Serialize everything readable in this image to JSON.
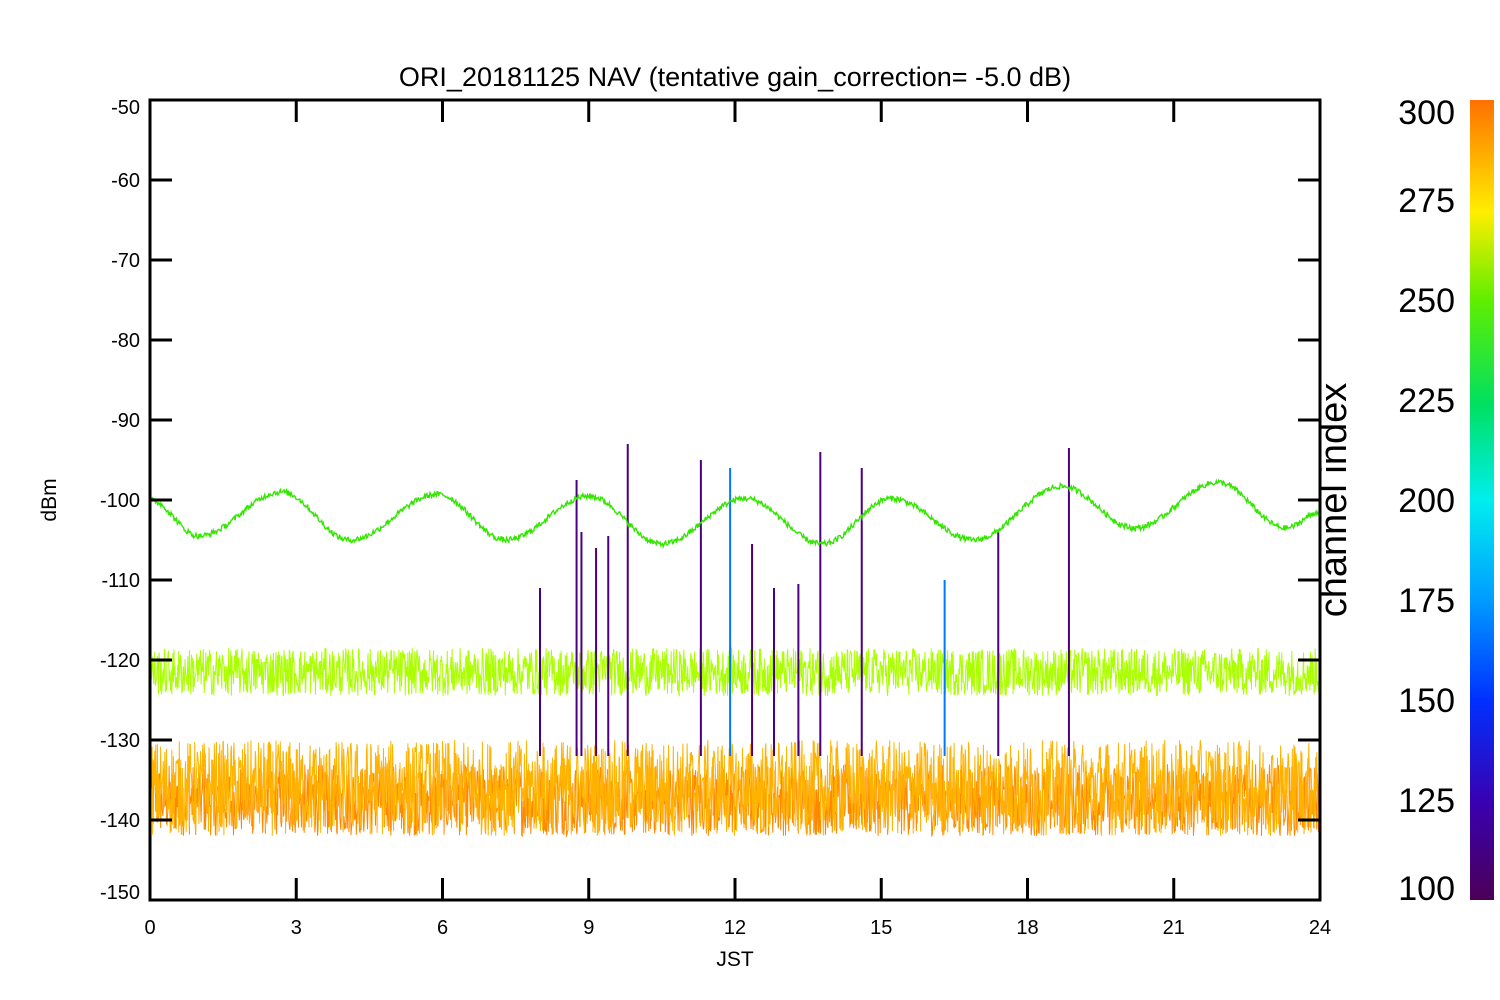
{
  "chart_data": {
    "type": "line",
    "title": "ORI_20181125 NAV (tentative gain_correction= -5.0 dB)",
    "xlabel": "JST",
    "ylabel": "dBm",
    "xlim": [
      0,
      24
    ],
    "ylim": [
      -150,
      -50
    ],
    "x_ticks": [
      "0",
      "3",
      "6",
      "9",
      "12",
      "15",
      "18",
      "21",
      "24"
    ],
    "y_ticks": [
      "-50",
      "-60",
      "-70",
      "-80",
      "-90",
      "-100",
      "-110",
      "-120",
      "-130",
      "-140",
      "-150"
    ],
    "colorbar": {
      "label": "channel index",
      "range": [
        100,
        300
      ],
      "ticks": [
        "300",
        "275",
        "250",
        "225",
        "200",
        "175",
        "150",
        "125",
        "100"
      ],
      "colormap": "rainbow"
    },
    "series": [
      {
        "channel": 240,
        "color": "#33e600",
        "kind": "sinusoid-line",
        "x": [
          0,
          1,
          2.7,
          4.1,
          5.9,
          7.3,
          9,
          10.5,
          12.2,
          13.8,
          15.2,
          16.9,
          18.7,
          20.2,
          21.9,
          23.3,
          24
        ],
        "y": [
          -100,
          -104.5,
          -99,
          -105,
          -99.3,
          -105,
          -99.5,
          -105.5,
          -99.8,
          -105.5,
          -99.8,
          -105,
          -98.3,
          -103.5,
          -97.8,
          -103.5,
          -101.5
        ]
      },
      {
        "channel": 260,
        "color": "#aaff00",
        "kind": "noise-band",
        "x": [
          0,
          24
        ],
        "y_mean": [
          -121.5,
          -121.5
        ],
        "y_halfwidth": 3
      },
      {
        "channel": 285,
        "color": "#ffb300",
        "kind": "noise-band",
        "x": [
          0,
          24
        ],
        "y_mean": [
          -136,
          -136
        ],
        "y_halfwidth": 6
      },
      {
        "channel": 292,
        "color": "#ff8800",
        "kind": "noise-band",
        "x": [
          0,
          24
        ],
        "y_mean": [
          -137.5,
          -137.5
        ],
        "y_halfwidth": 4.5
      }
    ],
    "spikes": [
      {
        "x": 8.0,
        "y": -111,
        "color": "#4b0082"
      },
      {
        "x": 8.75,
        "y": -97.5,
        "color": "#4b0082"
      },
      {
        "x": 8.85,
        "y": -104,
        "color": "#4b0082"
      },
      {
        "x": 9.15,
        "y": -106,
        "color": "#4b0082"
      },
      {
        "x": 9.4,
        "y": -104.5,
        "color": "#4b0082"
      },
      {
        "x": 9.8,
        "y": -93,
        "color": "#4b0082"
      },
      {
        "x": 11.3,
        "y": -95,
        "color": "#4b0082"
      },
      {
        "x": 11.9,
        "y": -96,
        "color": "#0077ff"
      },
      {
        "x": 12.35,
        "y": -105.5,
        "color": "#4b0082"
      },
      {
        "x": 12.8,
        "y": -111,
        "color": "#4b0082"
      },
      {
        "x": 13.3,
        "y": -110.5,
        "color": "#4b0082"
      },
      {
        "x": 13.75,
        "y": -94,
        "color": "#4b0082"
      },
      {
        "x": 14.6,
        "y": -96,
        "color": "#4b0082"
      },
      {
        "x": 16.3,
        "y": -110,
        "color": "#0077ff"
      },
      {
        "x": 17.4,
        "y": -104,
        "color": "#4b0082"
      },
      {
        "x": 18.85,
        "y": -93.5,
        "color": "#4b0082"
      }
    ]
  }
}
